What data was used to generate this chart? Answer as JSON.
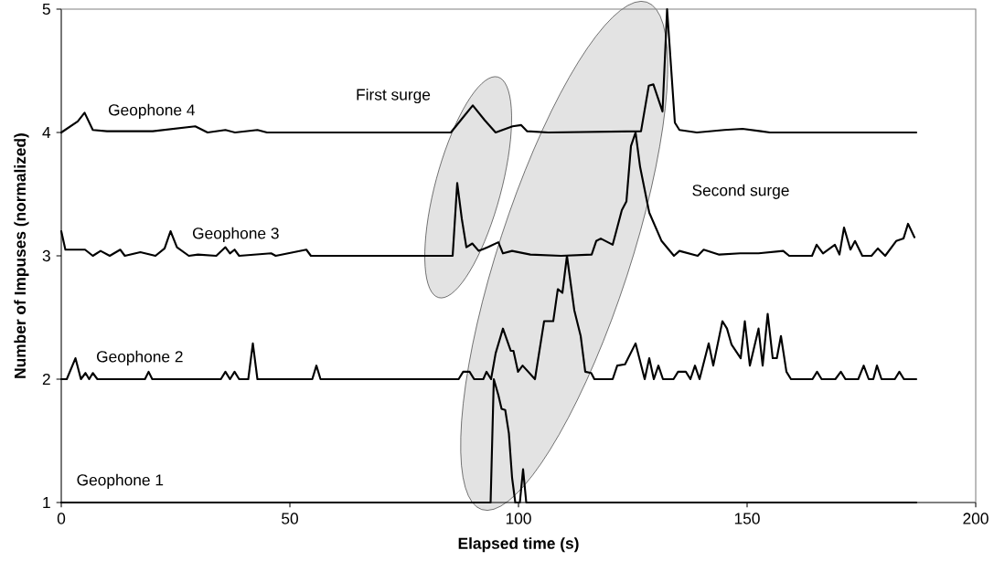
{
  "chart_data": {
    "type": "line",
    "xlabel": "Elapsed time (s)",
    "ylabel": "Number of Impuses (normalized)",
    "xlim": [
      0,
      200
    ],
    "ylim": [
      1,
      5
    ],
    "xticks": [
      0,
      50,
      100,
      150,
      200
    ],
    "yticks": [
      1,
      2,
      3,
      4,
      5
    ],
    "grid": false,
    "legend": false,
    "marker": "none",
    "line_style": "solid",
    "annotations": [
      "First surge",
      "Second surge"
    ],
    "series": [
      {
        "name": "Geophone 1",
        "color": "#000000",
        "x": [
          0,
          93.9,
          94.6,
          95.6,
          96.3,
          97.1,
          97.9,
          98.6,
          99.3,
          100.3,
          101,
          101.7,
          187
        ],
        "values": [
          1,
          1,
          2.0,
          1.87,
          1.76,
          1.75,
          1.56,
          1.2,
          1,
          1,
          1.27,
          1,
          1
        ]
      },
      {
        "name": "Geophone 2",
        "color": "#000000",
        "x": [
          0,
          1.2,
          3.1,
          4.3,
          5.3,
          6.1,
          6.9,
          7.9,
          18.3,
          19.1,
          19.9,
          34.9,
          35.9,
          36.9,
          37.9,
          38.9,
          40.9,
          41.9,
          42.9,
          54.9,
          55.8,
          56.7,
          86.9,
          87.9,
          89.3,
          90.3,
          92.3,
          93,
          94,
          95,
          96.6,
          98.3,
          98.9,
          99.9,
          100.9,
          103.6,
          105.6,
          107.6,
          108.6,
          109.6,
          110.6,
          112.2,
          113.6,
          114.6,
          115.9,
          116.6,
          120.6,
          121.6,
          123.3,
          125.6,
          127.6,
          128.6,
          129.6,
          130.6,
          131.6,
          133.9,
          134.9,
          136.6,
          137.6,
          138.6,
          139.6,
          141.6,
          142.6,
          144.6,
          145.6,
          146.6,
          148.6,
          149.5,
          150.6,
          152.5,
          153.4,
          154.5,
          155.6,
          156.5,
          157.4,
          158.6,
          159.6,
          164.3,
          165.3,
          166.3,
          169.3,
          170.5,
          171.5,
          174.3,
          175.5,
          176.6,
          177.6,
          178.4,
          179.4,
          182.3,
          183.3,
          184.3,
          187
        ],
        "values": [
          2,
          2,
          2.17,
          2,
          2.05,
          2,
          2.05,
          2,
          2,
          2.06,
          2,
          2,
          2.06,
          2,
          2.06,
          2,
          2,
          2.29,
          2,
          2,
          2.11,
          2,
          2,
          2.06,
          2.06,
          2,
          2,
          2.06,
          2,
          2.21,
          2.41,
          2.23,
          2.23,
          2.06,
          2.11,
          2,
          2.47,
          2.47,
          2.73,
          2.7,
          3.0,
          2.56,
          2.35,
          2.06,
          2.05,
          2,
          2,
          2.11,
          2.12,
          2.29,
          2,
          2.17,
          2,
          2.11,
          2,
          2,
          2.06,
          2.06,
          2,
          2.11,
          2,
          2.29,
          2.11,
          2.47,
          2.41,
          2.28,
          2.17,
          2.47,
          2.11,
          2.41,
          2.11,
          2.53,
          2.17,
          2.17,
          2.35,
          2.06,
          2,
          2,
          2.06,
          2,
          2,
          2.06,
          2,
          2,
          2.11,
          2,
          2,
          2.11,
          2,
          2,
          2.06,
          2,
          2
        ]
      },
      {
        "name": "Geophone 3",
        "color": "#000000",
        "x": [
          0,
          0.9,
          5.2,
          6.9,
          8.6,
          10.6,
          12.9,
          13.9,
          17.3,
          20.6,
          22.6,
          23.9,
          25.3,
          27.9,
          29.9,
          33.9,
          35.9,
          36.9,
          37.9,
          38.9,
          45.9,
          46.9,
          53.6,
          54.6,
          85.6,
          86.6,
          87.6,
          88.6,
          89.9,
          91.3,
          92.6,
          93.3,
          95.6,
          96.6,
          98.6,
          102.6,
          109.3,
          116,
          117,
          118,
          120.6,
          122.6,
          123.6,
          124.6,
          125.6,
          126.6,
          128.6,
          131.3,
          134,
          135.2,
          139.2,
          140.5,
          143.9,
          148.5,
          152.5,
          157.9,
          159.2,
          164.2,
          165.2,
          166.6,
          169.2,
          170.2,
          171.2,
          172.6,
          173.6,
          175.2,
          177.2,
          178.6,
          180.2,
          182.6,
          184.2,
          185.2,
          186.6
        ],
        "values": [
          3.2,
          3.05,
          3.05,
          3.0,
          3.04,
          3.0,
          3.05,
          3.0,
          3.03,
          3.0,
          3.06,
          3.2,
          3.07,
          3.0,
          3.01,
          3.0,
          3.07,
          3.02,
          3.05,
          3.0,
          3.02,
          3.0,
          3.05,
          3.0,
          3.0,
          3.59,
          3.3,
          3.07,
          3.1,
          3.04,
          3.06,
          3.07,
          3.11,
          3.02,
          3.04,
          3.01,
          3.0,
          3.01,
          3.12,
          3.14,
          3.09,
          3.37,
          3.44,
          3.89,
          4.0,
          3.72,
          3.35,
          3.12,
          3.0,
          3.04,
          3.0,
          3.05,
          3.01,
          3.02,
          3.02,
          3.04,
          3.0,
          3.0,
          3.09,
          3.02,
          3.09,
          3.01,
          3.23,
          3.05,
          3.12,
          3.0,
          3.0,
          3.06,
          3.0,
          3.12,
          3.14,
          3.26,
          3.15
        ]
      },
      {
        "name": "Geophone 4",
        "color": "#000000",
        "x": [
          0,
          3.6,
          5.1,
          6.9,
          10,
          20,
          29.3,
          32,
          35.9,
          38,
          42.9,
          45,
          85.2,
          90,
          92.6,
          95,
          98.7,
          100.6,
          101.9,
          106.5,
          126.8,
          128.5,
          129.5,
          131.5,
          132.5,
          134.2,
          135.2,
          139,
          145,
          149,
          153,
          155,
          187
        ],
        "values": [
          4.0,
          4.09,
          4.16,
          4.02,
          4.01,
          4.01,
          4.05,
          4.0,
          4.02,
          4.0,
          4.02,
          4.0,
          4.0,
          4.22,
          4.1,
          4.0,
          4.05,
          4.06,
          4.01,
          4.0,
          4.01,
          4.38,
          4.39,
          4.17,
          5.0,
          4.08,
          4.02,
          4.0,
          4.02,
          4.03,
          4.01,
          4.0,
          4.0
        ]
      }
    ]
  }
}
